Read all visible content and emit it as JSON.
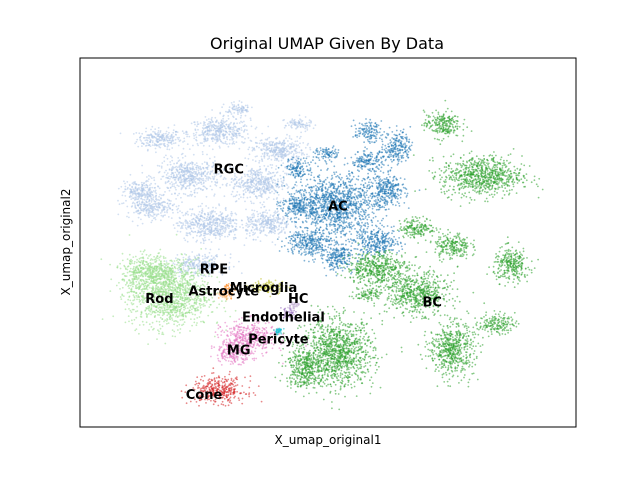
{
  "chart_data": {
    "type": "scatter",
    "title": "Original UMAP Given By Data",
    "xlabel": "X_umap_original1",
    "ylabel": "X_umap_original2",
    "ticks": "none",
    "grid": false,
    "legend": "on data",
    "xlim": [
      0,
      100
    ],
    "ylim": [
      0,
      100
    ],
    "clusters": [
      {
        "name": "RGC",
        "color": "#aec7e8",
        "label": [
          30,
          70
        ],
        "blobs": [
          [
            16,
            78,
            5,
            3
          ],
          [
            28,
            80,
            7,
            4
          ],
          [
            40,
            75,
            6,
            4
          ],
          [
            22,
            68,
            7,
            5
          ],
          [
            36,
            66,
            6,
            5
          ],
          [
            14,
            60,
            5,
            4
          ],
          [
            26,
            55,
            7,
            5
          ],
          [
            38,
            55,
            5,
            4
          ],
          [
            24,
            44,
            6,
            3
          ],
          [
            12,
            64,
            4,
            3
          ],
          [
            32,
            86,
            3,
            2
          ],
          [
            44,
            82,
            3,
            2
          ]
        ]
      },
      {
        "name": "AC",
        "color": "#1f77b4",
        "label": [
          52,
          60
        ],
        "blobs": [
          [
            52,
            60,
            9,
            9
          ],
          [
            58,
            72,
            4,
            3
          ],
          [
            62,
            64,
            4,
            5
          ],
          [
            60,
            50,
            5,
            4
          ],
          [
            46,
            50,
            5,
            4
          ],
          [
            44,
            60,
            4,
            4
          ],
          [
            52,
            46,
            4,
            4
          ],
          [
            58,
            80,
            3,
            3
          ],
          [
            64,
            76,
            3,
            5
          ],
          [
            44,
            70,
            3,
            3
          ],
          [
            50,
            74,
            3,
            2
          ]
        ]
      },
      {
        "name": "BC",
        "color": "#2ca02c",
        "label": [
          71,
          34
        ],
        "blobs": [
          [
            81,
            68,
            9,
            6
          ],
          [
            73,
            82,
            4,
            4
          ],
          [
            68,
            54,
            4,
            3
          ],
          [
            75,
            49,
            4,
            4
          ],
          [
            87,
            44,
            4,
            5
          ],
          [
            68,
            36,
            7,
            6
          ],
          [
            60,
            43,
            7,
            5
          ],
          [
            52,
            20,
            8,
            10
          ],
          [
            45,
            16,
            4,
            6
          ],
          [
            75,
            21,
            5,
            8
          ],
          [
            84,
            28,
            4,
            3
          ],
          [
            58,
            36,
            3,
            2
          ]
        ]
      },
      {
        "name": "Rod",
        "color": "#98df8a",
        "label": [
          16,
          35
        ],
        "blobs": [
          [
            18,
            36,
            9,
            10
          ],
          [
            14,
            42,
            6,
            5
          ]
        ]
      },
      {
        "name": "Cone",
        "color": "#d62728",
        "label": [
          25,
          9
        ],
        "blobs": [
          [
            28,
            10,
            6,
            4
          ]
        ]
      },
      {
        "name": "MG",
        "color": "#e377c2",
        "label": [
          32,
          21
        ],
        "blobs": [
          [
            34,
            24,
            6,
            5
          ],
          [
            31,
            20,
            4,
            3
          ]
        ]
      },
      {
        "name": "RPE",
        "color": "#ff7f0e",
        "label": [
          27,
          43
        ],
        "blobs": [
          [
            30,
            37,
            1.5,
            2
          ]
        ]
      },
      {
        "name": "Astrocyte",
        "color": "#ffbb78",
        "label": [
          29,
          37
        ],
        "blobs": [
          [
            29,
            36,
            1.5,
            1.5
          ]
        ]
      },
      {
        "name": "Microglia",
        "color": "#bcbd22",
        "label": [
          37,
          38
        ],
        "blobs": [
          [
            38,
            38,
            4,
            2
          ]
        ]
      },
      {
        "name": "HC",
        "color": "#9467bd",
        "label": [
          44,
          35
        ],
        "blobs": [
          [
            42,
            31,
            1.8,
            1.8
          ]
        ]
      },
      {
        "name": "Endothelial",
        "color": "#c5b0d5",
        "label": [
          41,
          30
        ],
        "blobs": [
          [
            43,
            33,
            1.2,
            1.2
          ]
        ]
      },
      {
        "name": "Pericyte",
        "color": "#17becf",
        "label": [
          40,
          24
        ],
        "blobs": [
          [
            40,
            26,
            1,
            1
          ]
        ]
      }
    ]
  }
}
